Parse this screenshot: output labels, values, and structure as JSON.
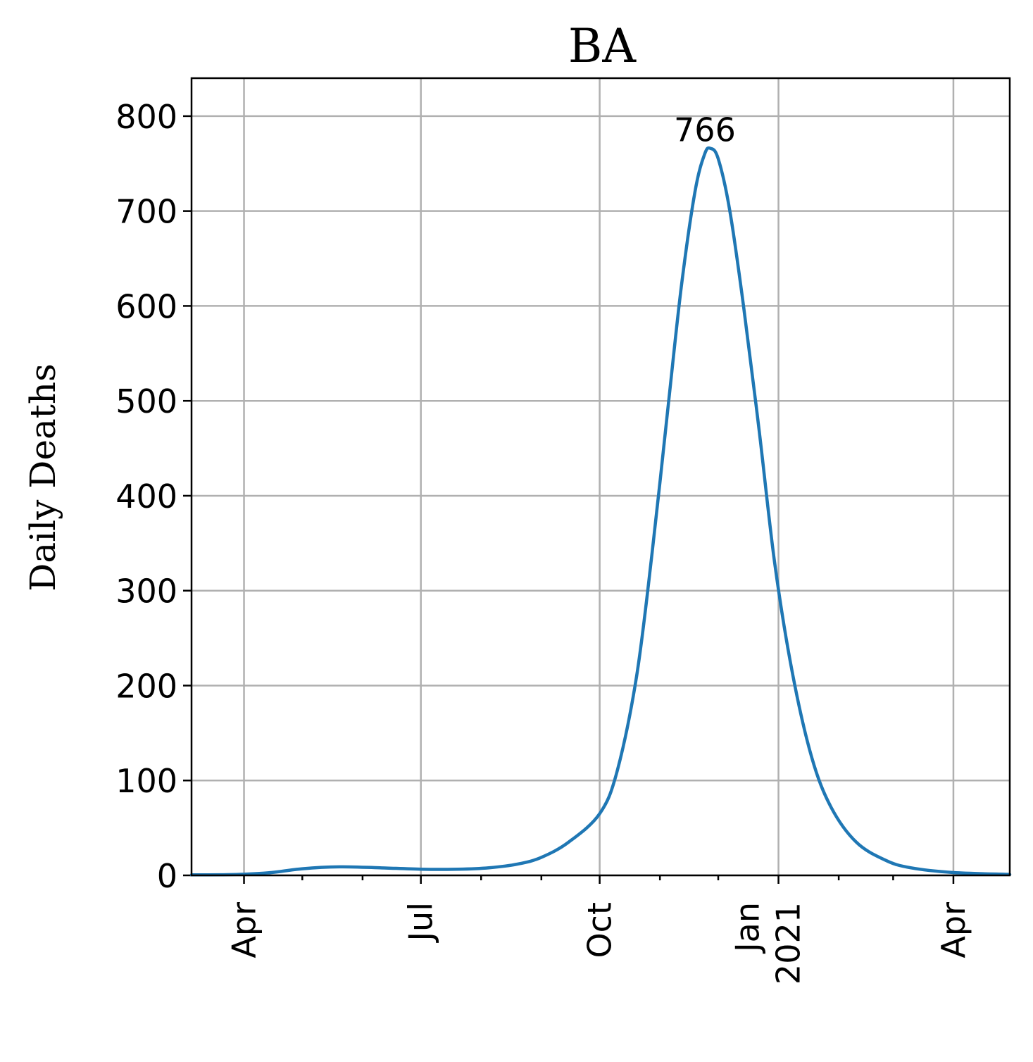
{
  "chart_data": {
    "type": "line",
    "title": "BA",
    "xlabel": "",
    "ylabel": "Daily Deaths",
    "x_axis_kind": "date",
    "xlim": [
      "2020-03-05",
      "2021-04-30"
    ],
    "ylim": [
      0,
      840
    ],
    "y_ticks": [
      0,
      100,
      200,
      300,
      400,
      500,
      600,
      700,
      800
    ],
    "x_major_ticks": [
      {
        "date": "2020-04-01",
        "label": "Apr",
        "sublabel": ""
      },
      {
        "date": "2020-07-01",
        "label": "Jul",
        "sublabel": ""
      },
      {
        "date": "2020-10-01",
        "label": "Oct",
        "sublabel": ""
      },
      {
        "date": "2021-01-01",
        "label": "Jan",
        "sublabel": "2021"
      },
      {
        "date": "2021-04-01",
        "label": "Apr",
        "sublabel": ""
      }
    ],
    "x_minor_ticks": [
      "2020-03-01",
      "2020-05-01",
      "2020-06-01",
      "2020-08-01",
      "2020-09-01",
      "2020-11-01",
      "2020-12-01",
      "2021-02-01",
      "2021-03-01",
      "2021-05-01"
    ],
    "grid": true,
    "series": [
      {
        "color": "#1f77b4",
        "points": [
          [
            "2020-03-05",
            0.5
          ],
          [
            "2020-03-20",
            0.7
          ],
          [
            "2020-04-01",
            1.2
          ],
          [
            "2020-04-15",
            3
          ],
          [
            "2020-05-01",
            7
          ],
          [
            "2020-05-20",
            9
          ],
          [
            "2020-06-10",
            8
          ],
          [
            "2020-07-01",
            6.5
          ],
          [
            "2020-07-20",
            6.5
          ],
          [
            "2020-08-05",
            8
          ],
          [
            "2020-08-20",
            12
          ],
          [
            "2020-09-01",
            19
          ],
          [
            "2020-09-15",
            35
          ],
          [
            "2020-10-01",
            65
          ],
          [
            "2020-10-10",
            110
          ],
          [
            "2020-10-20",
            210
          ],
          [
            "2020-10-28",
            340
          ],
          [
            "2020-11-05",
            490
          ],
          [
            "2020-11-12",
            620
          ],
          [
            "2020-11-19",
            720
          ],
          [
            "2020-11-24",
            760
          ],
          [
            "2020-11-27",
            766
          ],
          [
            "2020-12-01",
            755
          ],
          [
            "2020-12-07",
            700
          ],
          [
            "2020-12-14",
            600
          ],
          [
            "2020-12-22",
            470
          ],
          [
            "2020-12-30",
            330
          ],
          [
            "2021-01-08",
            215
          ],
          [
            "2021-01-18",
            125
          ],
          [
            "2021-01-28",
            72
          ],
          [
            "2021-02-10",
            35
          ],
          [
            "2021-02-25",
            16
          ],
          [
            "2021-03-10",
            8
          ],
          [
            "2021-04-01",
            3
          ],
          [
            "2021-04-30",
            1
          ]
        ]
      }
    ],
    "annotations": [
      {
        "text": "766",
        "date": "2020-11-27",
        "value": 766
      }
    ]
  }
}
